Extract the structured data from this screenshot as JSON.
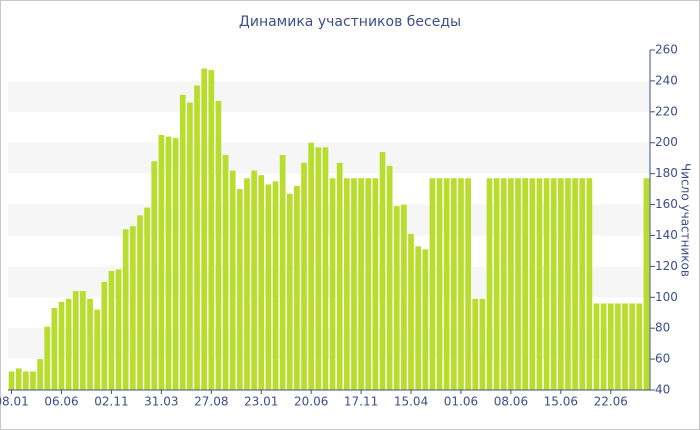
{
  "chart_data": {
    "type": "bar",
    "title": "Динамика участников беседы",
    "y_label": "Число участников",
    "categories": [
      "08.01",
      null,
      null,
      null,
      null,
      null,
      null,
      "06.06",
      null,
      null,
      null,
      null,
      null,
      null,
      "02.11",
      null,
      null,
      null,
      null,
      null,
      null,
      "31.03",
      null,
      null,
      null,
      null,
      null,
      null,
      "27.08",
      null,
      null,
      null,
      null,
      null,
      null,
      "23.01",
      null,
      null,
      null,
      null,
      null,
      null,
      "20.06",
      null,
      null,
      null,
      null,
      null,
      null,
      "17.11",
      null,
      null,
      null,
      null,
      null,
      null,
      "15.04",
      null,
      null,
      null,
      null,
      null,
      null,
      "01.06",
      null,
      null,
      null,
      null,
      null,
      null,
      "08.06",
      null,
      null,
      null,
      null,
      null,
      null,
      "15.06",
      null,
      null,
      null,
      null,
      null,
      null,
      "22.06",
      null,
      null,
      null,
      null,
      null
    ],
    "values": [
      52,
      54,
      52,
      52,
      60,
      81,
      93,
      97,
      99,
      104,
      104,
      99,
      92,
      110,
      117,
      118,
      144,
      146,
      153,
      158,
      188,
      205,
      204,
      203,
      231,
      226,
      237,
      248,
      247,
      227,
      192,
      182,
      170,
      177,
      182,
      179,
      173,
      175,
      192,
      167,
      172,
      187,
      200,
      197,
      197,
      177,
      187,
      177,
      177,
      177,
      177,
      177,
      194,
      185,
      159,
      160,
      141,
      133,
      131,
      177,
      177,
      177,
      177,
      177,
      177,
      99,
      99,
      177,
      177,
      177,
      177,
      177,
      177,
      177,
      177,
      177,
      177,
      177,
      177,
      177,
      177,
      177,
      96,
      96,
      96,
      96,
      96,
      96,
      96,
      177
    ],
    "color": "#b8dd2c",
    "ylim": [
      40,
      260
    ],
    "yticks": [
      40,
      60,
      80,
      100,
      120,
      140,
      160,
      180,
      200,
      220,
      240,
      260
    ],
    "grid_bands": true
  }
}
